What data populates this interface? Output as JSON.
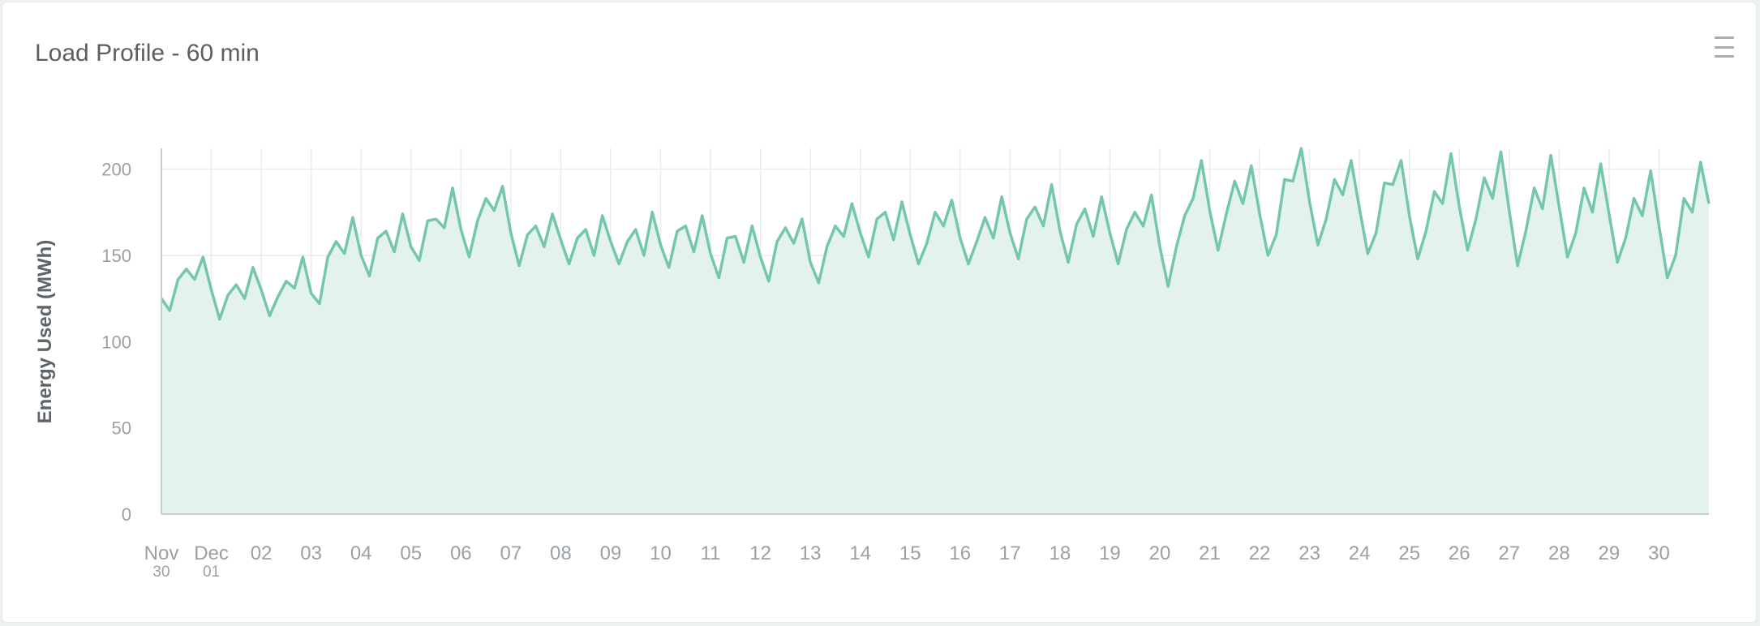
{
  "card": {
    "title": "Load Profile - 60 min",
    "menu_icon": "hamburger-menu-icon"
  },
  "colors": {
    "line": "#74c7a9",
    "area": "#e3f2ef",
    "grid": "#e9ebec",
    "axis": "#c5cccf"
  },
  "chart_data": {
    "type": "area",
    "title": "Load Profile - 60 min",
    "xlabel": "",
    "ylabel": "Energy Used (MWh)",
    "ylim": [
      0,
      212
    ],
    "yticks": [
      0,
      50,
      100,
      150,
      200
    ],
    "xlim": [
      "2023-11-30T00:00",
      "2023-12-31T00:00"
    ],
    "xticks": [
      {
        "label": "Nov",
        "sub": "30",
        "at": "2023-11-30T00:00"
      },
      {
        "label": "Dec",
        "sub": "01",
        "at": "2023-12-01T00:00"
      },
      {
        "label": "02",
        "at": "2023-12-02T00:00"
      },
      {
        "label": "03",
        "at": "2023-12-03T00:00"
      },
      {
        "label": "04",
        "at": "2023-12-04T00:00"
      },
      {
        "label": "05",
        "at": "2023-12-05T00:00"
      },
      {
        "label": "06",
        "at": "2023-12-06T00:00"
      },
      {
        "label": "07",
        "at": "2023-12-07T00:00"
      },
      {
        "label": "08",
        "at": "2023-12-08T00:00"
      },
      {
        "label": "09",
        "at": "2023-12-09T00:00"
      },
      {
        "label": "10",
        "at": "2023-12-10T00:00"
      },
      {
        "label": "11",
        "at": "2023-12-11T00:00"
      },
      {
        "label": "12",
        "at": "2023-12-12T00:00"
      },
      {
        "label": "13",
        "at": "2023-12-13T00:00"
      },
      {
        "label": "14",
        "at": "2023-12-14T00:00"
      },
      {
        "label": "15",
        "at": "2023-12-15T00:00"
      },
      {
        "label": "16",
        "at": "2023-12-16T00:00"
      },
      {
        "label": "17",
        "at": "2023-12-17T00:00"
      },
      {
        "label": "18",
        "at": "2023-12-18T00:00"
      },
      {
        "label": "19",
        "at": "2023-12-19T00:00"
      },
      {
        "label": "20",
        "at": "2023-12-20T00:00"
      },
      {
        "label": "21",
        "at": "2023-12-21T00:00"
      },
      {
        "label": "22",
        "at": "2023-12-22T00:00"
      },
      {
        "label": "23",
        "at": "2023-12-23T00:00"
      },
      {
        "label": "24",
        "at": "2023-12-24T00:00"
      },
      {
        "label": "25",
        "at": "2023-12-25T00:00"
      },
      {
        "label": "26",
        "at": "2023-12-26T00:00"
      },
      {
        "label": "27",
        "at": "2023-12-27T00:00"
      },
      {
        "label": "28",
        "at": "2023-12-28T00:00"
      },
      {
        "label": "29",
        "at": "2023-12-29T00:00"
      },
      {
        "label": "30",
        "at": "2023-12-30T00:00"
      }
    ],
    "grid": true,
    "legend": "none",
    "series": [
      {
        "points": [
          [
            "2023-11-30T00:00",
            125
          ],
          [
            "2023-11-30T04:00",
            118
          ],
          [
            "2023-11-30T08:00",
            136
          ],
          [
            "2023-11-30T12:00",
            142
          ],
          [
            "2023-11-30T16:00",
            136
          ],
          [
            "2023-11-30T20:00",
            149
          ],
          [
            "2023-12-01T00:00",
            130
          ],
          [
            "2023-12-01T04:00",
            113
          ],
          [
            "2023-12-01T08:00",
            127
          ],
          [
            "2023-12-01T12:00",
            133
          ],
          [
            "2023-12-01T16:00",
            125
          ],
          [
            "2023-12-01T20:00",
            143
          ],
          [
            "2023-12-02T00:00",
            130
          ],
          [
            "2023-12-02T04:00",
            115
          ],
          [
            "2023-12-02T08:00",
            126
          ],
          [
            "2023-12-02T12:00",
            135
          ],
          [
            "2023-12-02T16:00",
            131
          ],
          [
            "2023-12-02T20:00",
            149
          ],
          [
            "2023-12-03T00:00",
            128
          ],
          [
            "2023-12-03T04:00",
            122
          ],
          [
            "2023-12-03T08:00",
            149
          ],
          [
            "2023-12-03T12:00",
            158
          ],
          [
            "2023-12-03T16:00",
            151
          ],
          [
            "2023-12-03T20:00",
            172
          ],
          [
            "2023-12-04T00:00",
            150
          ],
          [
            "2023-12-04T04:00",
            138
          ],
          [
            "2023-12-04T08:00",
            160
          ],
          [
            "2023-12-04T12:00",
            164
          ],
          [
            "2023-12-04T16:00",
            152
          ],
          [
            "2023-12-04T20:00",
            174
          ],
          [
            "2023-12-05T00:00",
            155
          ],
          [
            "2023-12-05T04:00",
            147
          ],
          [
            "2023-12-05T08:00",
            170
          ],
          [
            "2023-12-05T12:00",
            171
          ],
          [
            "2023-12-05T16:00",
            166
          ],
          [
            "2023-12-05T20:00",
            189
          ],
          [
            "2023-12-06T00:00",
            165
          ],
          [
            "2023-12-06T04:00",
            149
          ],
          [
            "2023-12-06T08:00",
            170
          ],
          [
            "2023-12-06T12:00",
            183
          ],
          [
            "2023-12-06T16:00",
            176
          ],
          [
            "2023-12-06T20:00",
            190
          ],
          [
            "2023-12-07T00:00",
            163
          ],
          [
            "2023-12-07T04:00",
            144
          ],
          [
            "2023-12-07T08:00",
            162
          ],
          [
            "2023-12-07T12:00",
            167
          ],
          [
            "2023-12-07T16:00",
            155
          ],
          [
            "2023-12-07T20:00",
            174
          ],
          [
            "2023-12-08T00:00",
            159
          ],
          [
            "2023-12-08T04:00",
            145
          ],
          [
            "2023-12-08T08:00",
            160
          ],
          [
            "2023-12-08T12:00",
            165
          ],
          [
            "2023-12-08T16:00",
            150
          ],
          [
            "2023-12-08T20:00",
            173
          ],
          [
            "2023-12-09T00:00",
            158
          ],
          [
            "2023-12-09T04:00",
            145
          ],
          [
            "2023-12-09T08:00",
            158
          ],
          [
            "2023-12-09T12:00",
            165
          ],
          [
            "2023-12-09T16:00",
            150
          ],
          [
            "2023-12-09T20:00",
            175
          ],
          [
            "2023-12-10T00:00",
            156
          ],
          [
            "2023-12-10T04:00",
            143
          ],
          [
            "2023-12-10T08:00",
            164
          ],
          [
            "2023-12-10T12:00",
            167
          ],
          [
            "2023-12-10T16:00",
            152
          ],
          [
            "2023-12-10T20:00",
            173
          ],
          [
            "2023-12-11T00:00",
            151
          ],
          [
            "2023-12-11T04:00",
            137
          ],
          [
            "2023-12-11T08:00",
            160
          ],
          [
            "2023-12-11T12:00",
            161
          ],
          [
            "2023-12-11T16:00",
            146
          ],
          [
            "2023-12-11T20:00",
            167
          ],
          [
            "2023-12-12T00:00",
            149
          ],
          [
            "2023-12-12T04:00",
            135
          ],
          [
            "2023-12-12T08:00",
            158
          ],
          [
            "2023-12-12T12:00",
            166
          ],
          [
            "2023-12-12T16:00",
            157
          ],
          [
            "2023-12-12T20:00",
            171
          ],
          [
            "2023-12-13T00:00",
            146
          ],
          [
            "2023-12-13T04:00",
            134
          ],
          [
            "2023-12-13T08:00",
            155
          ],
          [
            "2023-12-13T12:00",
            167
          ],
          [
            "2023-12-13T16:00",
            161
          ],
          [
            "2023-12-13T20:00",
            180
          ],
          [
            "2023-12-14T00:00",
            163
          ],
          [
            "2023-12-14T04:00",
            149
          ],
          [
            "2023-12-14T08:00",
            171
          ],
          [
            "2023-12-14T12:00",
            175
          ],
          [
            "2023-12-14T16:00",
            159
          ],
          [
            "2023-12-14T20:00",
            181
          ],
          [
            "2023-12-15T00:00",
            162
          ],
          [
            "2023-12-15T04:00",
            145
          ],
          [
            "2023-12-15T08:00",
            157
          ],
          [
            "2023-12-15T12:00",
            175
          ],
          [
            "2023-12-15T16:00",
            167
          ],
          [
            "2023-12-15T20:00",
            182
          ],
          [
            "2023-12-16T00:00",
            160
          ],
          [
            "2023-12-16T04:00",
            145
          ],
          [
            "2023-12-16T08:00",
            158
          ],
          [
            "2023-12-16T12:00",
            172
          ],
          [
            "2023-12-16T16:00",
            160
          ],
          [
            "2023-12-16T20:00",
            184
          ],
          [
            "2023-12-17T00:00",
            163
          ],
          [
            "2023-12-17T04:00",
            148
          ],
          [
            "2023-12-17T08:00",
            171
          ],
          [
            "2023-12-17T12:00",
            178
          ],
          [
            "2023-12-17T16:00",
            167
          ],
          [
            "2023-12-17T20:00",
            191
          ],
          [
            "2023-12-18T00:00",
            164
          ],
          [
            "2023-12-18T04:00",
            146
          ],
          [
            "2023-12-18T08:00",
            168
          ],
          [
            "2023-12-18T12:00",
            177
          ],
          [
            "2023-12-18T16:00",
            161
          ],
          [
            "2023-12-18T20:00",
            184
          ],
          [
            "2023-12-19T00:00",
            163
          ],
          [
            "2023-12-19T04:00",
            145
          ],
          [
            "2023-12-19T08:00",
            165
          ],
          [
            "2023-12-19T12:00",
            175
          ],
          [
            "2023-12-19T16:00",
            167
          ],
          [
            "2023-12-19T20:00",
            185
          ],
          [
            "2023-12-20T00:00",
            155
          ],
          [
            "2023-12-20T04:00",
            132
          ],
          [
            "2023-12-20T08:00",
            155
          ],
          [
            "2023-12-20T12:00",
            173
          ],
          [
            "2023-12-20T16:00",
            183
          ],
          [
            "2023-12-20T20:00",
            205
          ],
          [
            "2023-12-21T00:00",
            176
          ],
          [
            "2023-12-21T04:00",
            153
          ],
          [
            "2023-12-21T08:00",
            174
          ],
          [
            "2023-12-21T12:00",
            193
          ],
          [
            "2023-12-21T16:00",
            180
          ],
          [
            "2023-12-21T20:00",
            202
          ],
          [
            "2023-12-22T00:00",
            174
          ],
          [
            "2023-12-22T04:00",
            150
          ],
          [
            "2023-12-22T08:00",
            162
          ],
          [
            "2023-12-22T12:00",
            194
          ],
          [
            "2023-12-22T16:00",
            193
          ],
          [
            "2023-12-22T20:00",
            212
          ],
          [
            "2023-12-23T00:00",
            181
          ],
          [
            "2023-12-23T04:00",
            156
          ],
          [
            "2023-12-23T08:00",
            171
          ],
          [
            "2023-12-23T12:00",
            194
          ],
          [
            "2023-12-23T16:00",
            185
          ],
          [
            "2023-12-23T20:00",
            205
          ],
          [
            "2023-12-24T00:00",
            177
          ],
          [
            "2023-12-24T04:00",
            151
          ],
          [
            "2023-12-24T08:00",
            163
          ],
          [
            "2023-12-24T12:00",
            192
          ],
          [
            "2023-12-24T16:00",
            191
          ],
          [
            "2023-12-24T20:00",
            205
          ],
          [
            "2023-12-25T00:00",
            173
          ],
          [
            "2023-12-25T04:00",
            148
          ],
          [
            "2023-12-25T08:00",
            164
          ],
          [
            "2023-12-25T12:00",
            187
          ],
          [
            "2023-12-25T16:00",
            180
          ],
          [
            "2023-12-25T20:00",
            209
          ],
          [
            "2023-12-26T00:00",
            178
          ],
          [
            "2023-12-26T04:00",
            153
          ],
          [
            "2023-12-26T08:00",
            171
          ],
          [
            "2023-12-26T12:00",
            195
          ],
          [
            "2023-12-26T16:00",
            183
          ],
          [
            "2023-12-26T20:00",
            210
          ],
          [
            "2023-12-27T00:00",
            176
          ],
          [
            "2023-12-27T04:00",
            144
          ],
          [
            "2023-12-27T08:00",
            164
          ],
          [
            "2023-12-27T12:00",
            189
          ],
          [
            "2023-12-27T16:00",
            177
          ],
          [
            "2023-12-27T20:00",
            208
          ],
          [
            "2023-12-28T00:00",
            178
          ],
          [
            "2023-12-28T04:00",
            149
          ],
          [
            "2023-12-28T08:00",
            163
          ],
          [
            "2023-12-28T12:00",
            189
          ],
          [
            "2023-12-28T16:00",
            175
          ],
          [
            "2023-12-28T20:00",
            203
          ],
          [
            "2023-12-29T00:00",
            174
          ],
          [
            "2023-12-29T04:00",
            146
          ],
          [
            "2023-12-29T08:00",
            160
          ],
          [
            "2023-12-29T12:00",
            183
          ],
          [
            "2023-12-29T16:00",
            173
          ],
          [
            "2023-12-29T20:00",
            199
          ],
          [
            "2023-12-30T00:00",
            167
          ],
          [
            "2023-12-30T04:00",
            137
          ],
          [
            "2023-12-30T08:00",
            150
          ],
          [
            "2023-12-30T12:00",
            183
          ],
          [
            "2023-12-30T16:00",
            175
          ],
          [
            "2023-12-30T20:00",
            204
          ],
          [
            "2023-12-31T00:00",
            180
          ]
        ]
      }
    ]
  }
}
